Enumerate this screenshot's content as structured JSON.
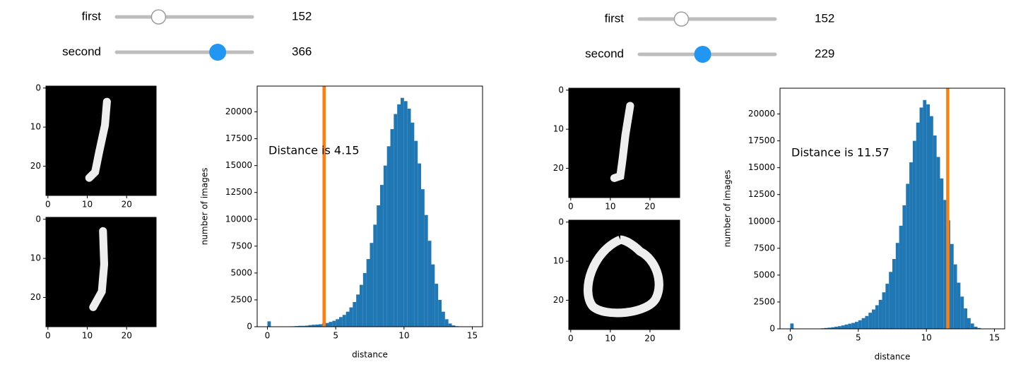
{
  "widgets": [
    [
      {
        "label": "first",
        "value": 152,
        "max": 491,
        "color": "#ffffff"
      },
      {
        "label": "second",
        "value": 366,
        "max": 491,
        "color": "#2196f3"
      }
    ],
    [
      {
        "label": "first",
        "value": 152,
        "max": 491,
        "color": "#ffffff"
      },
      {
        "label": "second",
        "value": 229,
        "max": 491,
        "color": "#2196f3"
      }
    ]
  ],
  "chart_data": [
    {
      "type": "image",
      "xlim": [
        -0.5,
        27.5
      ],
      "ylim": [
        27.5,
        -0.5
      ],
      "xticks": [
        0,
        10,
        20
      ],
      "yticks": [
        0,
        10,
        20
      ]
    },
    {
      "type": "image",
      "xlim": [
        -0.5,
        27.5
      ],
      "ylim": [
        27.5,
        -0.5
      ],
      "xticks": [
        0,
        10,
        20
      ],
      "yticks": [
        0,
        10,
        20
      ]
    },
    {
      "type": "histogram",
      "xlabel": "distance",
      "ylabel": "number of images",
      "annotation": "Distance is 4.15",
      "vline": 4.15,
      "vline_color": "#ff7f0e",
      "color": "#1f77b4",
      "bins": [
        0,
        0.25,
        0.5,
        0.75,
        1,
        1.25,
        1.5,
        1.75,
        2,
        2.25,
        2.5,
        2.75,
        3,
        3.25,
        3.5,
        3.75,
        4,
        4.25,
        4.5,
        4.75,
        5,
        5.25,
        5.5,
        5.75,
        6,
        6.25,
        6.5,
        6.75,
        7,
        7.25,
        7.5,
        7.75,
        8,
        8.25,
        8.5,
        8.75,
        9,
        9.25,
        9.5,
        9.75,
        10,
        10.25,
        10.5,
        10.75,
        11,
        11.25,
        11.5,
        11.75,
        12,
        12.25,
        12.5,
        12.75,
        13,
        13.25,
        13.5,
        13.75,
        14,
        14.25,
        14.5,
        14.75,
        15
      ],
      "values": [
        500,
        0,
        0,
        0,
        30,
        30,
        30,
        40,
        60,
        80,
        80,
        100,
        150,
        180,
        200,
        230,
        300,
        350,
        450,
        550,
        700,
        900,
        1100,
        1400,
        1800,
        2300,
        3000,
        3900,
        5000,
        6300,
        7800,
        9500,
        11300,
        13200,
        15000,
        16800,
        18400,
        19800,
        20700,
        21300,
        21000,
        20300,
        19000,
        17300,
        15200,
        12800,
        10400,
        8000,
        5800,
        4000,
        2500,
        1400,
        700,
        300,
        120,
        50,
        20,
        10,
        0,
        0
      ],
      "xlim": [
        -0.75,
        15.75
      ],
      "ylim": [
        0,
        22400
      ],
      "xticks": [
        0,
        5,
        10,
        15
      ],
      "yticks": [
        0,
        2500,
        5000,
        7500,
        10000,
        12500,
        15000,
        17500,
        20000
      ]
    },
    {
      "type": "image",
      "xlim": [
        -0.5,
        27.5
      ],
      "ylim": [
        27.5,
        -0.5
      ],
      "xticks": [
        0,
        10,
        20
      ],
      "yticks": [
        0,
        10,
        20
      ]
    },
    {
      "type": "image",
      "xlim": [
        -0.5,
        27.5
      ],
      "ylim": [
        27.5,
        -0.5
      ],
      "xticks": [
        0,
        10,
        20
      ],
      "yticks": [
        0,
        10,
        20
      ]
    },
    {
      "type": "histogram",
      "xlabel": "distance",
      "ylabel": "number of images",
      "annotation": "Distance is 11.57",
      "vline": 11.57,
      "vline_color": "#ff7f0e",
      "color": "#1f77b4",
      "bins": [
        0,
        0.25,
        0.5,
        0.75,
        1,
        1.25,
        1.5,
        1.75,
        2,
        2.25,
        2.5,
        2.75,
        3,
        3.25,
        3.5,
        3.75,
        4,
        4.25,
        4.5,
        4.75,
        5,
        5.25,
        5.5,
        5.75,
        6,
        6.25,
        6.5,
        6.75,
        7,
        7.25,
        7.5,
        7.75,
        8,
        8.25,
        8.5,
        8.75,
        9,
        9.25,
        9.5,
        9.75,
        10,
        10.25,
        10.5,
        10.75,
        11,
        11.25,
        11.5,
        11.75,
        12,
        12.25,
        12.5,
        12.75,
        13,
        13.25,
        13.5,
        13.75,
        14,
        14.25,
        14.5,
        14.75,
        15
      ],
      "values": [
        500,
        0,
        0,
        0,
        0,
        0,
        0,
        0,
        0,
        50,
        80,
        110,
        150,
        200,
        250,
        320,
        400,
        480,
        550,
        650,
        800,
        1000,
        1200,
        1500,
        1800,
        2200,
        2700,
        3400,
        4200,
        5300,
        6500,
        8000,
        9600,
        11500,
        13500,
        15500,
        17500,
        19200,
        20600,
        21300,
        20900,
        19800,
        18000,
        16000,
        14000,
        12000,
        10100,
        7900,
        6000,
        4300,
        3000,
        1900,
        1000,
        500,
        200,
        80,
        30,
        10,
        0,
        0
      ],
      "xlim": [
        -0.75,
        15.75
      ],
      "ylim": [
        0,
        22400
      ],
      "xticks": [
        0,
        5,
        10,
        15
      ],
      "yticks": [
        0,
        2500,
        5000,
        7500,
        10000,
        12500,
        15000,
        17500,
        20000
      ]
    }
  ]
}
